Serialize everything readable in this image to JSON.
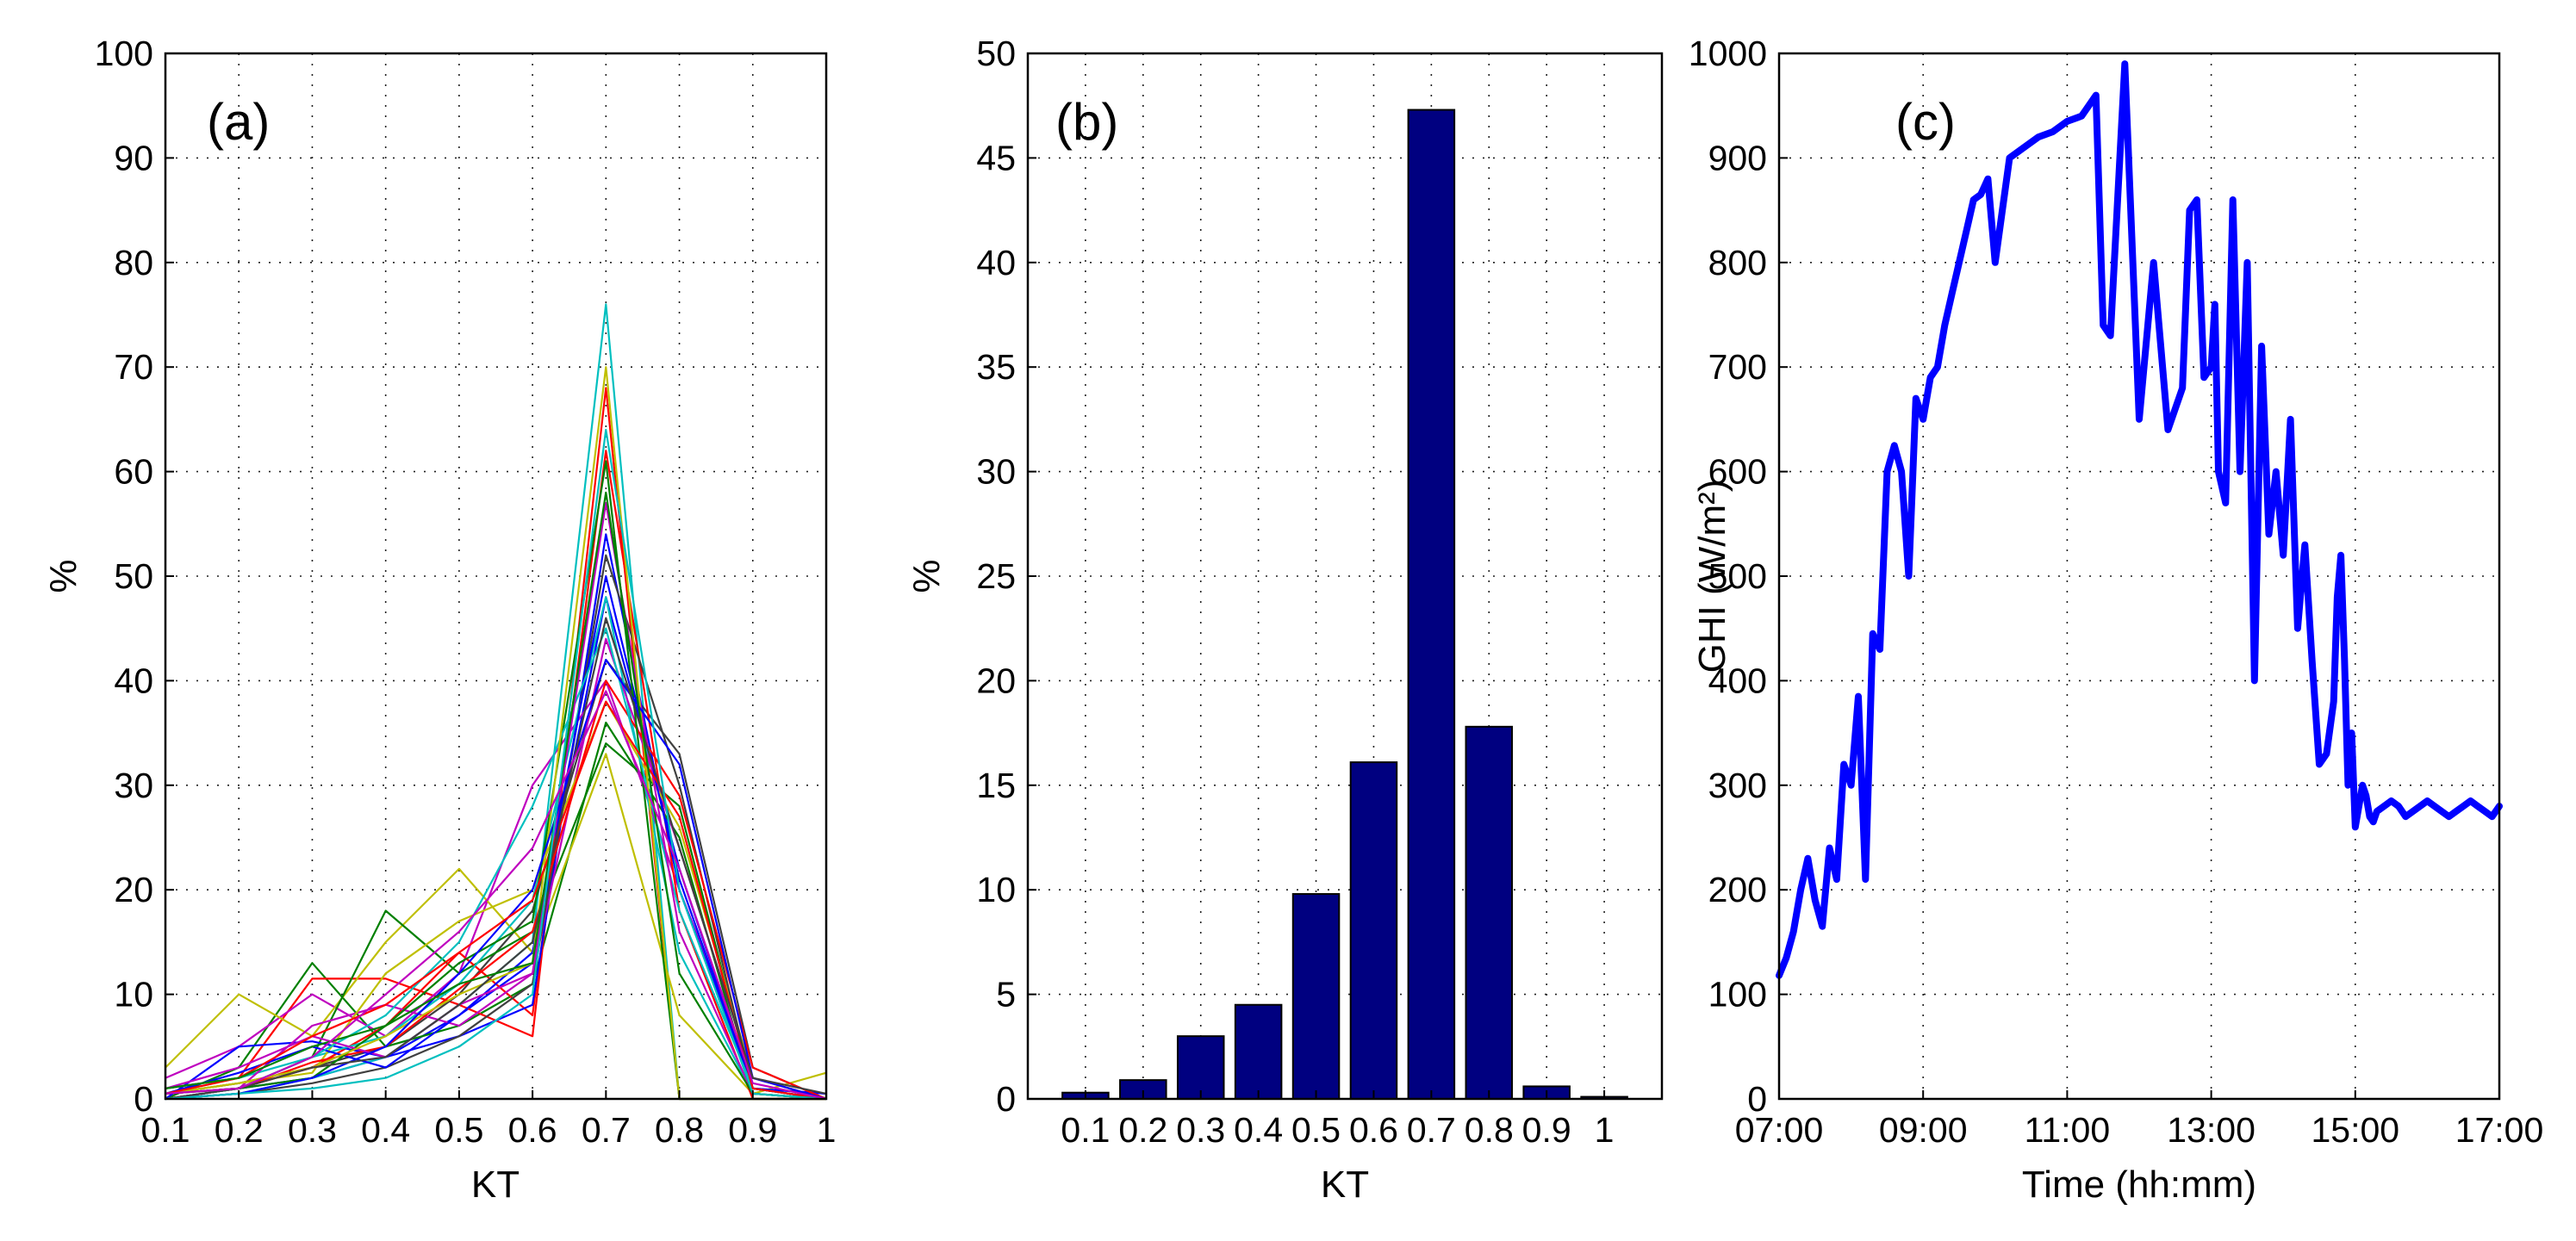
{
  "chart_data": [
    {
      "panel_label": "(a)",
      "type": "line",
      "title": "",
      "xlabel": "KT",
      "ylabel": "%",
      "xlim": [
        0.1,
        1.0
      ],
      "ylim": [
        0,
        100
      ],
      "xticks": [
        "0.1",
        "0.2",
        "0.3",
        "0.4",
        "0.5",
        "0.6",
        "0.7",
        "0.8",
        "0.9",
        "1"
      ],
      "yticks": [
        "0",
        "10",
        "20",
        "30",
        "40",
        "50",
        "60",
        "70",
        "80",
        "90",
        "100"
      ],
      "grid": true,
      "x": [
        0.1,
        0.2,
        0.3,
        0.4,
        0.5,
        0.6,
        0.7,
        0.8,
        0.9,
        1.0
      ],
      "series": [
        {
          "name": "s1",
          "color": "#0000ff",
          "values": [
            0.5,
            1.0,
            2.0,
            4.0,
            8.0,
            13.0,
            48.0,
            22.0,
            1.0,
            0.5
          ]
        },
        {
          "name": "s2",
          "color": "#008000",
          "values": [
            0.0,
            3.0,
            13.0,
            5.0,
            7.0,
            11.0,
            36.0,
            25.0,
            0.5,
            0.0
          ]
        },
        {
          "name": "s3",
          "color": "#ff0000",
          "values": [
            1.0,
            2.0,
            11.5,
            11.5,
            9.0,
            6.0,
            68.0,
            0.0,
            0.0,
            0.0
          ]
        },
        {
          "name": "s4",
          "color": "#00bfbf",
          "values": [
            0.0,
            0.5,
            2.0,
            4.0,
            9.0,
            15.0,
            76.0,
            0.0,
            0.0,
            0.0
          ]
        },
        {
          "name": "s5",
          "color": "#bf00bf",
          "values": [
            2.0,
            5.0,
            10.0,
            6.0,
            12.0,
            30.0,
            40.0,
            20.0,
            2.0,
            0.0
          ]
        },
        {
          "name": "s6",
          "color": "#bfbf00",
          "values": [
            3.0,
            10.0,
            6.0,
            15.0,
            22.0,
            14.0,
            33.0,
            8.0,
            0.5,
            2.5
          ]
        },
        {
          "name": "s7",
          "color": "#404040",
          "values": [
            0.5,
            1.5,
            3.0,
            5.0,
            10.0,
            18.0,
            42.0,
            33.0,
            3.0,
            0.0
          ]
        },
        {
          "name": "s8",
          "color": "#008000",
          "values": [
            0.0,
            1.0,
            4.0,
            18.0,
            12.0,
            16.0,
            34.0,
            28.0,
            1.0,
            0.0
          ]
        },
        {
          "name": "s9",
          "color": "#ff0000",
          "values": [
            0.5,
            1.0,
            3.0,
            7.0,
            14.0,
            8.0,
            62.0,
            18.0,
            0.0,
            0.0
          ]
        },
        {
          "name": "s10",
          "color": "#0000ff",
          "values": [
            0.0,
            5.0,
            5.5,
            4.0,
            6.0,
            9.0,
            54.0,
            20.0,
            1.0,
            0.0
          ]
        },
        {
          "name": "s11",
          "color": "#00bfbf",
          "values": [
            1.0,
            2.0,
            4.0,
            6.0,
            11.0,
            19.0,
            48.0,
            14.0,
            0.5,
            0.0
          ]
        },
        {
          "name": "s12",
          "color": "#bf00bf",
          "values": [
            0.0,
            1.0,
            7.0,
            9.0,
            7.0,
            12.0,
            44.0,
            24.0,
            2.0,
            0.0
          ]
        },
        {
          "name": "s13",
          "color": "#bfbf00",
          "values": [
            0.5,
            1.5,
            2.5,
            12.0,
            17.0,
            20.0,
            38.0,
            26.0,
            2.0,
            0.0
          ]
        },
        {
          "name": "s14",
          "color": "#404040",
          "values": [
            0.0,
            0.5,
            1.5,
            3.0,
            6.0,
            11.0,
            52.0,
            30.0,
            1.0,
            0.0
          ]
        },
        {
          "name": "s15",
          "color": "#0000ff",
          "values": [
            0.5,
            2.5,
            5.0,
            3.0,
            8.0,
            14.0,
            50.0,
            21.0,
            1.0,
            0.5
          ]
        },
        {
          "name": "s16",
          "color": "#ff0000",
          "values": [
            0.0,
            1.0,
            3.5,
            5.0,
            10.5,
            16.0,
            40.0,
            29.0,
            3.0,
            0.0
          ]
        },
        {
          "name": "s17",
          "color": "#008000",
          "values": [
            0.5,
            1.0,
            2.0,
            7.0,
            13.0,
            17.0,
            61.0,
            0.0,
            0.0,
            0.0
          ]
        },
        {
          "name": "s18",
          "color": "#00bfbf",
          "values": [
            0.0,
            1.0,
            4.0,
            8.0,
            15.0,
            28.0,
            45.0,
            18.0,
            1.0,
            0.0
          ]
        },
        {
          "name": "s19",
          "color": "#bf00bf",
          "values": [
            1.0,
            3.0,
            6.0,
            4.0,
            9.0,
            12.0,
            57.0,
            16.0,
            0.5,
            0.0
          ]
        },
        {
          "name": "s20",
          "color": "#bfbf00",
          "values": [
            0.5,
            1.5,
            3.0,
            6.0,
            10.0,
            13.0,
            70.0,
            0.0,
            0.0,
            0.0
          ]
        },
        {
          "name": "s21",
          "color": "#0000ff",
          "values": [
            0.0,
            0.5,
            2.0,
            5.0,
            12.0,
            20.0,
            42.0,
            32.0,
            2.0,
            0.0
          ]
        },
        {
          "name": "s22",
          "color": "#ff0000",
          "values": [
            0.5,
            2.0,
            6.0,
            9.0,
            14.0,
            19.0,
            38.0,
            27.0,
            1.0,
            0.0
          ]
        },
        {
          "name": "s23",
          "color": "#404040",
          "values": [
            0.0,
            1.0,
            3.0,
            4.0,
            9.0,
            15.0,
            46.0,
            24.0,
            2.0,
            0.5
          ]
        },
        {
          "name": "s24",
          "color": "#008000",
          "values": [
            1.0,
            2.0,
            5.0,
            7.0,
            11.0,
            13.0,
            58.0,
            12.0,
            0.5,
            0.0
          ]
        },
        {
          "name": "s25",
          "color": "#00bfbf",
          "values": [
            0.0,
            0.5,
            1.0,
            2.0,
            5.0,
            10.0,
            64.0,
            20.0,
            0.5,
            0.0
          ]
        },
        {
          "name": "s26",
          "color": "#bf00bf",
          "values": [
            0.5,
            1.0,
            4.0,
            10.0,
            16.0,
            24.0,
            39.0,
            22.0,
            1.5,
            0.0
          ]
        }
      ]
    },
    {
      "panel_label": "(b)",
      "type": "bar",
      "title": "",
      "xlabel": "KT",
      "ylabel": "%",
      "ylim": [
        0,
        50
      ],
      "yticks": [
        "0",
        "5",
        "10",
        "15",
        "20",
        "25",
        "30",
        "35",
        "40",
        "45",
        "50"
      ],
      "grid": true,
      "bar_color": "#000080",
      "categories": [
        "0.1",
        "0.2",
        "0.3",
        "0.4",
        "0.5",
        "0.6",
        "0.7",
        "0.8",
        "0.9",
        "1"
      ],
      "values": [
        0.3,
        0.9,
        3.0,
        4.5,
        9.8,
        16.1,
        47.3,
        17.8,
        0.6,
        0.1
      ]
    },
    {
      "panel_label": "(c)",
      "type": "line",
      "title": "",
      "xlabel": "Time (hh:mm)",
      "ylabel": "GHI (W/m²)",
      "xlim": [
        7,
        17
      ],
      "ylim": [
        0,
        1000
      ],
      "xticks": [
        "07:00",
        "09:00",
        "11:00",
        "13:00",
        "15:00",
        "17:00"
      ],
      "yticks": [
        "0",
        "100",
        "200",
        "300",
        "400",
        "500",
        "600",
        "700",
        "800",
        "900",
        "1000"
      ],
      "grid": true,
      "line_color": "#0000ff",
      "x_hours": [
        7.0,
        7.1,
        7.2,
        7.3,
        7.4,
        7.5,
        7.6,
        7.7,
        7.8,
        7.9,
        8.0,
        8.1,
        8.2,
        8.3,
        8.4,
        8.5,
        8.6,
        8.7,
        8.8,
        8.9,
        9.0,
        9.1,
        9.2,
        9.3,
        9.4,
        9.5,
        9.6,
        9.7,
        9.8,
        9.9,
        10.0,
        10.2,
        10.4,
        10.6,
        10.8,
        11.0,
        11.2,
        11.3,
        11.4,
        11.5,
        11.6,
        11.8,
        12.0,
        12.2,
        12.4,
        12.6,
        12.7,
        12.8,
        12.9,
        13.0,
        13.05,
        13.1,
        13.2,
        13.3,
        13.4,
        13.5,
        13.6,
        13.7,
        13.8,
        13.9,
        14.0,
        14.1,
        14.2,
        14.3,
        14.4,
        14.5,
        14.6,
        14.7,
        14.75,
        14.8,
        14.85,
        14.9,
        14.95,
        15.0,
        15.05,
        15.1,
        15.15,
        15.2,
        15.25,
        15.3,
        15.4,
        15.5,
        15.6,
        15.7,
        15.8,
        15.9,
        16.0,
        16.1,
        16.2,
        16.3,
        16.4,
        16.5,
        16.6,
        16.7,
        16.8,
        16.9,
        17.0
      ],
      "ghi": [
        118,
        135,
        160,
        200,
        230,
        190,
        165,
        240,
        210,
        320,
        300,
        385,
        210,
        445,
        430,
        600,
        625,
        600,
        500,
        670,
        650,
        690,
        700,
        740,
        770,
        800,
        830,
        860,
        865,
        880,
        800,
        900,
        910,
        920,
        925,
        935,
        940,
        950,
        960,
        740,
        730,
        990,
        650,
        800,
        640,
        680,
        850,
        860,
        690,
        700,
        760,
        600,
        570,
        860,
        600,
        800,
        400,
        720,
        540,
        600,
        520,
        650,
        450,
        530,
        420,
        320,
        330,
        380,
        480,
        520,
        420,
        300,
        350,
        260,
        280,
        300,
        290,
        270,
        265,
        275,
        280,
        285,
        280,
        270,
        275,
        280,
        285,
        280,
        275,
        270,
        275,
        280,
        285,
        280,
        275,
        270,
        280
      ],
      "note_ghi": "approximate trace read from the figure"
    }
  ]
}
